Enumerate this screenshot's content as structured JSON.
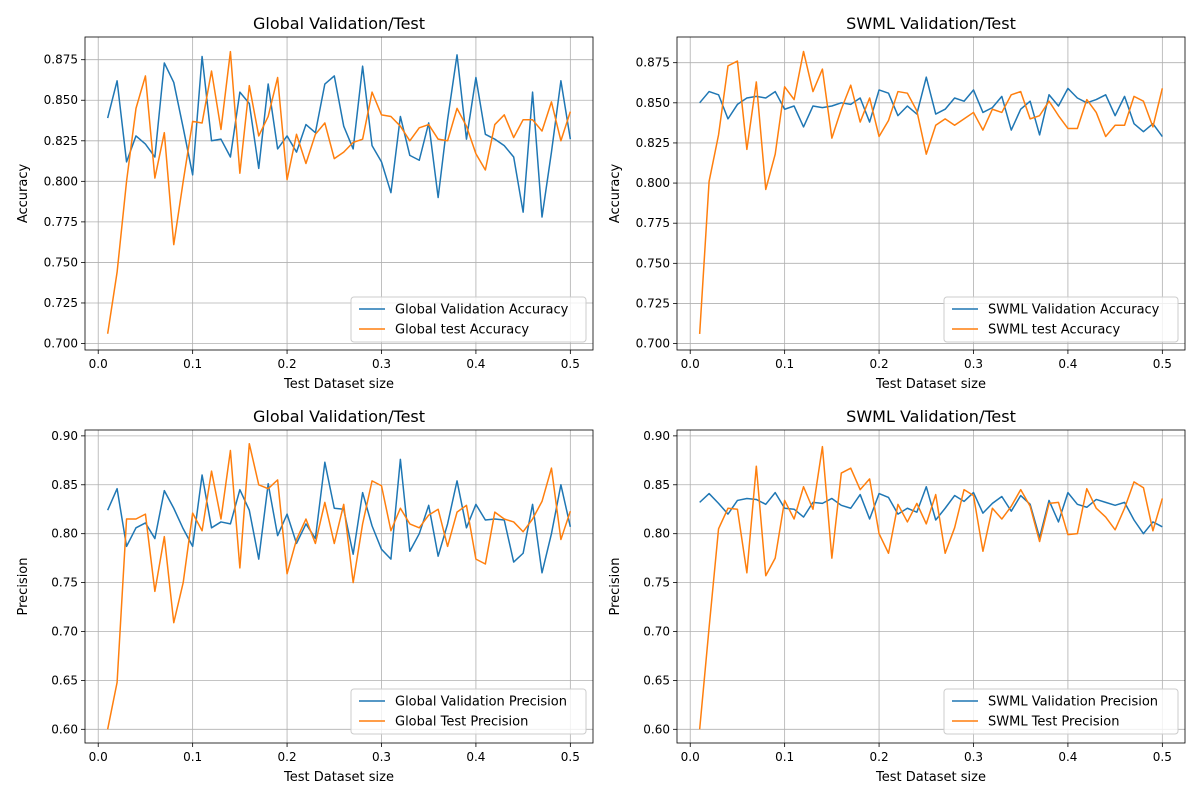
{
  "chart_data": [
    {
      "type": "line",
      "title": "Global Validation/Test",
      "xlabel": "Test Dataset size",
      "ylabel": "Accuracy",
      "xlim": [
        -0.014,
        0.524
      ],
      "ylim": [
        0.696,
        0.889
      ],
      "xticks": [
        0.0,
        0.1,
        0.2,
        0.3,
        0.4,
        0.5
      ],
      "xtick_labels": [
        "0.0",
        "0.1",
        "0.2",
        "0.3",
        "0.4",
        "0.5"
      ],
      "yticks": [
        0.7,
        0.725,
        0.75,
        0.775,
        0.8,
        0.825,
        0.85,
        0.875
      ],
      "ytick_labels": [
        "0.700",
        "0.725",
        "0.750",
        "0.775",
        "0.800",
        "0.825",
        "0.850",
        "0.875"
      ],
      "grid": true,
      "legend_position": "lower-right",
      "x": [
        0.01,
        0.02,
        0.03,
        0.04,
        0.05,
        0.06,
        0.07,
        0.08,
        0.09,
        0.1,
        0.11,
        0.12,
        0.13,
        0.14,
        0.15,
        0.16,
        0.17,
        0.18,
        0.19,
        0.2,
        0.21,
        0.22,
        0.23,
        0.24,
        0.25,
        0.26,
        0.27,
        0.28,
        0.29,
        0.3,
        0.31,
        0.32,
        0.33,
        0.34,
        0.35,
        0.36,
        0.37,
        0.38,
        0.39,
        0.4,
        0.41,
        0.42,
        0.43,
        0.44,
        0.45,
        0.46,
        0.47,
        0.48,
        0.49,
        0.5
      ],
      "series": [
        {
          "name": "Global Validation Accuracy",
          "color": "#1f77b4",
          "values": [
            0.839,
            0.862,
            0.812,
            0.828,
            0.823,
            0.815,
            0.873,
            0.861,
            0.833,
            0.804,
            0.877,
            0.825,
            0.826,
            0.815,
            0.855,
            0.848,
            0.808,
            0.86,
            0.82,
            0.828,
            0.818,
            0.835,
            0.83,
            0.86,
            0.865,
            0.834,
            0.82,
            0.871,
            0.822,
            0.812,
            0.793,
            0.84,
            0.816,
            0.813,
            0.836,
            0.79,
            0.838,
            0.878,
            0.826,
            0.864,
            0.829,
            0.826,
            0.822,
            0.815,
            0.781,
            0.855,
            0.778,
            0.818,
            0.862,
            0.826
          ]
        },
        {
          "name": "Global test Accuracy",
          "color": "#ff7f0e",
          "values": [
            0.706,
            0.744,
            0.8,
            0.845,
            0.865,
            0.802,
            0.83,
            0.761,
            0.8,
            0.837,
            0.836,
            0.868,
            0.832,
            0.88,
            0.805,
            0.859,
            0.828,
            0.84,
            0.864,
            0.801,
            0.829,
            0.811,
            0.829,
            0.836,
            0.814,
            0.818,
            0.824,
            0.826,
            0.855,
            0.841,
            0.84,
            0.834,
            0.825,
            0.833,
            0.835,
            0.826,
            0.825,
            0.845,
            0.834,
            0.817,
            0.807,
            0.835,
            0.841,
            0.827,
            0.838,
            0.838,
            0.831,
            0.849,
            0.825,
            0.843
          ]
        }
      ]
    },
    {
      "type": "line",
      "title": "ЅWML Validation/Test",
      "xlabel": "Test Dataset size",
      "ylabel": "Accuracy",
      "xlim": [
        -0.014,
        0.524
      ],
      "ylim": [
        0.696,
        0.891
      ],
      "xticks": [
        0.0,
        0.1,
        0.2,
        0.3,
        0.4,
        0.5
      ],
      "xtick_labels": [
        "0.0",
        "0.1",
        "0.2",
        "0.3",
        "0.4",
        "0.5"
      ],
      "yticks": [
        0.7,
        0.725,
        0.75,
        0.775,
        0.8,
        0.825,
        0.85,
        0.875
      ],
      "ytick_labels": [
        "0.700",
        "0.725",
        "0.750",
        "0.775",
        "0.800",
        "0.825",
        "0.850",
        "0.875"
      ],
      "grid": true,
      "legend_position": "lower-right",
      "x": [
        0.01,
        0.02,
        0.03,
        0.04,
        0.05,
        0.06,
        0.07,
        0.08,
        0.09,
        0.1,
        0.11,
        0.12,
        0.13,
        0.14,
        0.15,
        0.16,
        0.17,
        0.18,
        0.19,
        0.2,
        0.21,
        0.22,
        0.23,
        0.24,
        0.25,
        0.26,
        0.27,
        0.28,
        0.29,
        0.3,
        0.31,
        0.32,
        0.33,
        0.34,
        0.35,
        0.36,
        0.37,
        0.38,
        0.39,
        0.4,
        0.41,
        0.42,
        0.43,
        0.44,
        0.45,
        0.46,
        0.47,
        0.48,
        0.49,
        0.5
      ],
      "series": [
        {
          "name": "ЅWML Validation Accuracy",
          "color": "#1f77b4",
          "values": [
            0.85,
            0.857,
            0.855,
            0.84,
            0.849,
            0.853,
            0.854,
            0.853,
            0.857,
            0.846,
            0.848,
            0.835,
            0.848,
            0.847,
            0.848,
            0.85,
            0.849,
            0.853,
            0.838,
            0.858,
            0.856,
            0.842,
            0.848,
            0.843,
            0.866,
            0.843,
            0.846,
            0.853,
            0.851,
            0.858,
            0.844,
            0.847,
            0.854,
            0.833,
            0.846,
            0.851,
            0.83,
            0.855,
            0.848,
            0.859,
            0.853,
            0.85,
            0.852,
            0.855,
            0.842,
            0.854,
            0.837,
            0.832,
            0.837,
            0.829
          ]
        },
        {
          "name": "ЅWML test Accuracy",
          "color": "#ff7f0e",
          "values": [
            0.706,
            0.801,
            0.83,
            0.873,
            0.876,
            0.821,
            0.863,
            0.796,
            0.818,
            0.86,
            0.852,
            0.882,
            0.857,
            0.871,
            0.828,
            0.846,
            0.861,
            0.838,
            0.853,
            0.829,
            0.839,
            0.857,
            0.856,
            0.845,
            0.818,
            0.836,
            0.84,
            0.836,
            0.84,
            0.844,
            0.833,
            0.846,
            0.844,
            0.855,
            0.857,
            0.84,
            0.842,
            0.851,
            0.842,
            0.834,
            0.834,
            0.852,
            0.844,
            0.829,
            0.836,
            0.836,
            0.854,
            0.851,
            0.835,
            0.859
          ]
        }
      ]
    },
    {
      "type": "line",
      "title": "Global Validation/Test",
      "xlabel": "Test Dataset size",
      "ylabel": "Precision",
      "xlim": [
        -0.014,
        0.524
      ],
      "ylim": [
        0.586,
        0.906
      ],
      "xticks": [
        0.0,
        0.1,
        0.2,
        0.3,
        0.4,
        0.5
      ],
      "xtick_labels": [
        "0.0",
        "0.1",
        "0.2",
        "0.3",
        "0.4",
        "0.5"
      ],
      "yticks": [
        0.6,
        0.65,
        0.7,
        0.75,
        0.8,
        0.85,
        0.9
      ],
      "ytick_labels": [
        "0.60",
        "0.65",
        "0.70",
        "0.75",
        "0.80",
        "0.85",
        "0.90"
      ],
      "grid": true,
      "legend_position": "lower-right",
      "x": [
        0.01,
        0.02,
        0.03,
        0.04,
        0.05,
        0.06,
        0.07,
        0.08,
        0.09,
        0.1,
        0.11,
        0.12,
        0.13,
        0.14,
        0.15,
        0.16,
        0.17,
        0.18,
        0.19,
        0.2,
        0.21,
        0.22,
        0.23,
        0.24,
        0.25,
        0.26,
        0.27,
        0.28,
        0.29,
        0.3,
        0.31,
        0.32,
        0.33,
        0.34,
        0.35,
        0.36,
        0.37,
        0.38,
        0.39,
        0.4,
        0.41,
        0.42,
        0.43,
        0.44,
        0.45,
        0.46,
        0.47,
        0.48,
        0.49,
        0.5
      ],
      "series": [
        {
          "name": "Global Validation Precision",
          "color": "#1f77b4",
          "values": [
            0.824,
            0.846,
            0.787,
            0.806,
            0.811,
            0.795,
            0.844,
            0.826,
            0.805,
            0.787,
            0.86,
            0.806,
            0.812,
            0.81,
            0.845,
            0.824,
            0.774,
            0.851,
            0.798,
            0.82,
            0.79,
            0.81,
            0.795,
            0.873,
            0.826,
            0.825,
            0.779,
            0.842,
            0.808,
            0.784,
            0.774,
            0.876,
            0.782,
            0.8,
            0.829,
            0.777,
            0.81,
            0.854,
            0.806,
            0.83,
            0.814,
            0.815,
            0.814,
            0.771,
            0.78,
            0.83,
            0.76,
            0.8,
            0.85,
            0.807
          ]
        },
        {
          "name": "Global Test Precision",
          "color": "#ff7f0e",
          "values": [
            0.6,
            0.648,
            0.815,
            0.815,
            0.82,
            0.741,
            0.797,
            0.709,
            0.75,
            0.821,
            0.803,
            0.864,
            0.815,
            0.885,
            0.765,
            0.892,
            0.85,
            0.846,
            0.855,
            0.759,
            0.794,
            0.815,
            0.79,
            0.832,
            0.79,
            0.83,
            0.75,
            0.81,
            0.854,
            0.849,
            0.803,
            0.826,
            0.81,
            0.806,
            0.819,
            0.825,
            0.787,
            0.822,
            0.829,
            0.774,
            0.769,
            0.822,
            0.815,
            0.812,
            0.802,
            0.815,
            0.833,
            0.867,
            0.794,
            0.823
          ]
        }
      ]
    },
    {
      "type": "line",
      "title": "ЅWML Validation/Test",
      "xlabel": "Test Dataset size",
      "ylabel": "Precision",
      "xlim": [
        -0.014,
        0.524
      ],
      "ylim": [
        0.586,
        0.906
      ],
      "xticks": [
        0.0,
        0.1,
        0.2,
        0.3,
        0.4,
        0.5
      ],
      "xtick_labels": [
        "0.0",
        "0.1",
        "0.2",
        "0.3",
        "0.4",
        "0.5"
      ],
      "yticks": [
        0.6,
        0.65,
        0.7,
        0.75,
        0.8,
        0.85,
        0.9
      ],
      "ytick_labels": [
        "0.60",
        "0.65",
        "0.70",
        "0.75",
        "0.80",
        "0.85",
        "0.90"
      ],
      "grid": true,
      "legend_position": "lower-right",
      "x": [
        0.01,
        0.02,
        0.03,
        0.04,
        0.05,
        0.06,
        0.07,
        0.08,
        0.09,
        0.1,
        0.11,
        0.12,
        0.13,
        0.14,
        0.15,
        0.16,
        0.17,
        0.18,
        0.19,
        0.2,
        0.21,
        0.22,
        0.23,
        0.24,
        0.25,
        0.26,
        0.27,
        0.28,
        0.29,
        0.3,
        0.31,
        0.32,
        0.33,
        0.34,
        0.35,
        0.36,
        0.37,
        0.38,
        0.39,
        0.4,
        0.41,
        0.42,
        0.43,
        0.44,
        0.45,
        0.46,
        0.47,
        0.48,
        0.49,
        0.5
      ],
      "series": [
        {
          "name": "ЅWML Validation Precision",
          "color": "#1f77b4",
          "values": [
            0.832,
            0.841,
            0.831,
            0.82,
            0.834,
            0.836,
            0.835,
            0.83,
            0.842,
            0.826,
            0.825,
            0.817,
            0.832,
            0.831,
            0.836,
            0.829,
            0.826,
            0.84,
            0.815,
            0.841,
            0.837,
            0.82,
            0.826,
            0.822,
            0.848,
            0.814,
            0.826,
            0.839,
            0.833,
            0.842,
            0.821,
            0.831,
            0.838,
            0.823,
            0.839,
            0.83,
            0.796,
            0.834,
            0.812,
            0.842,
            0.83,
            0.827,
            0.835,
            0.832,
            0.829,
            0.832,
            0.814,
            0.8,
            0.812,
            0.807
          ]
        },
        {
          "name": "ЅWML Test Precision",
          "color": "#ff7f0e",
          "values": [
            0.6,
            0.704,
            0.805,
            0.826,
            0.825,
            0.76,
            0.869,
            0.757,
            0.775,
            0.834,
            0.815,
            0.848,
            0.825,
            0.889,
            0.775,
            0.862,
            0.867,
            0.845,
            0.856,
            0.8,
            0.78,
            0.83,
            0.812,
            0.831,
            0.81,
            0.84,
            0.78,
            0.806,
            0.845,
            0.839,
            0.782,
            0.826,
            0.815,
            0.828,
            0.845,
            0.828,
            0.792,
            0.831,
            0.832,
            0.799,
            0.8,
            0.846,
            0.826,
            0.817,
            0.804,
            0.826,
            0.853,
            0.847,
            0.803,
            0.836
          ]
        }
      ]
    }
  ]
}
